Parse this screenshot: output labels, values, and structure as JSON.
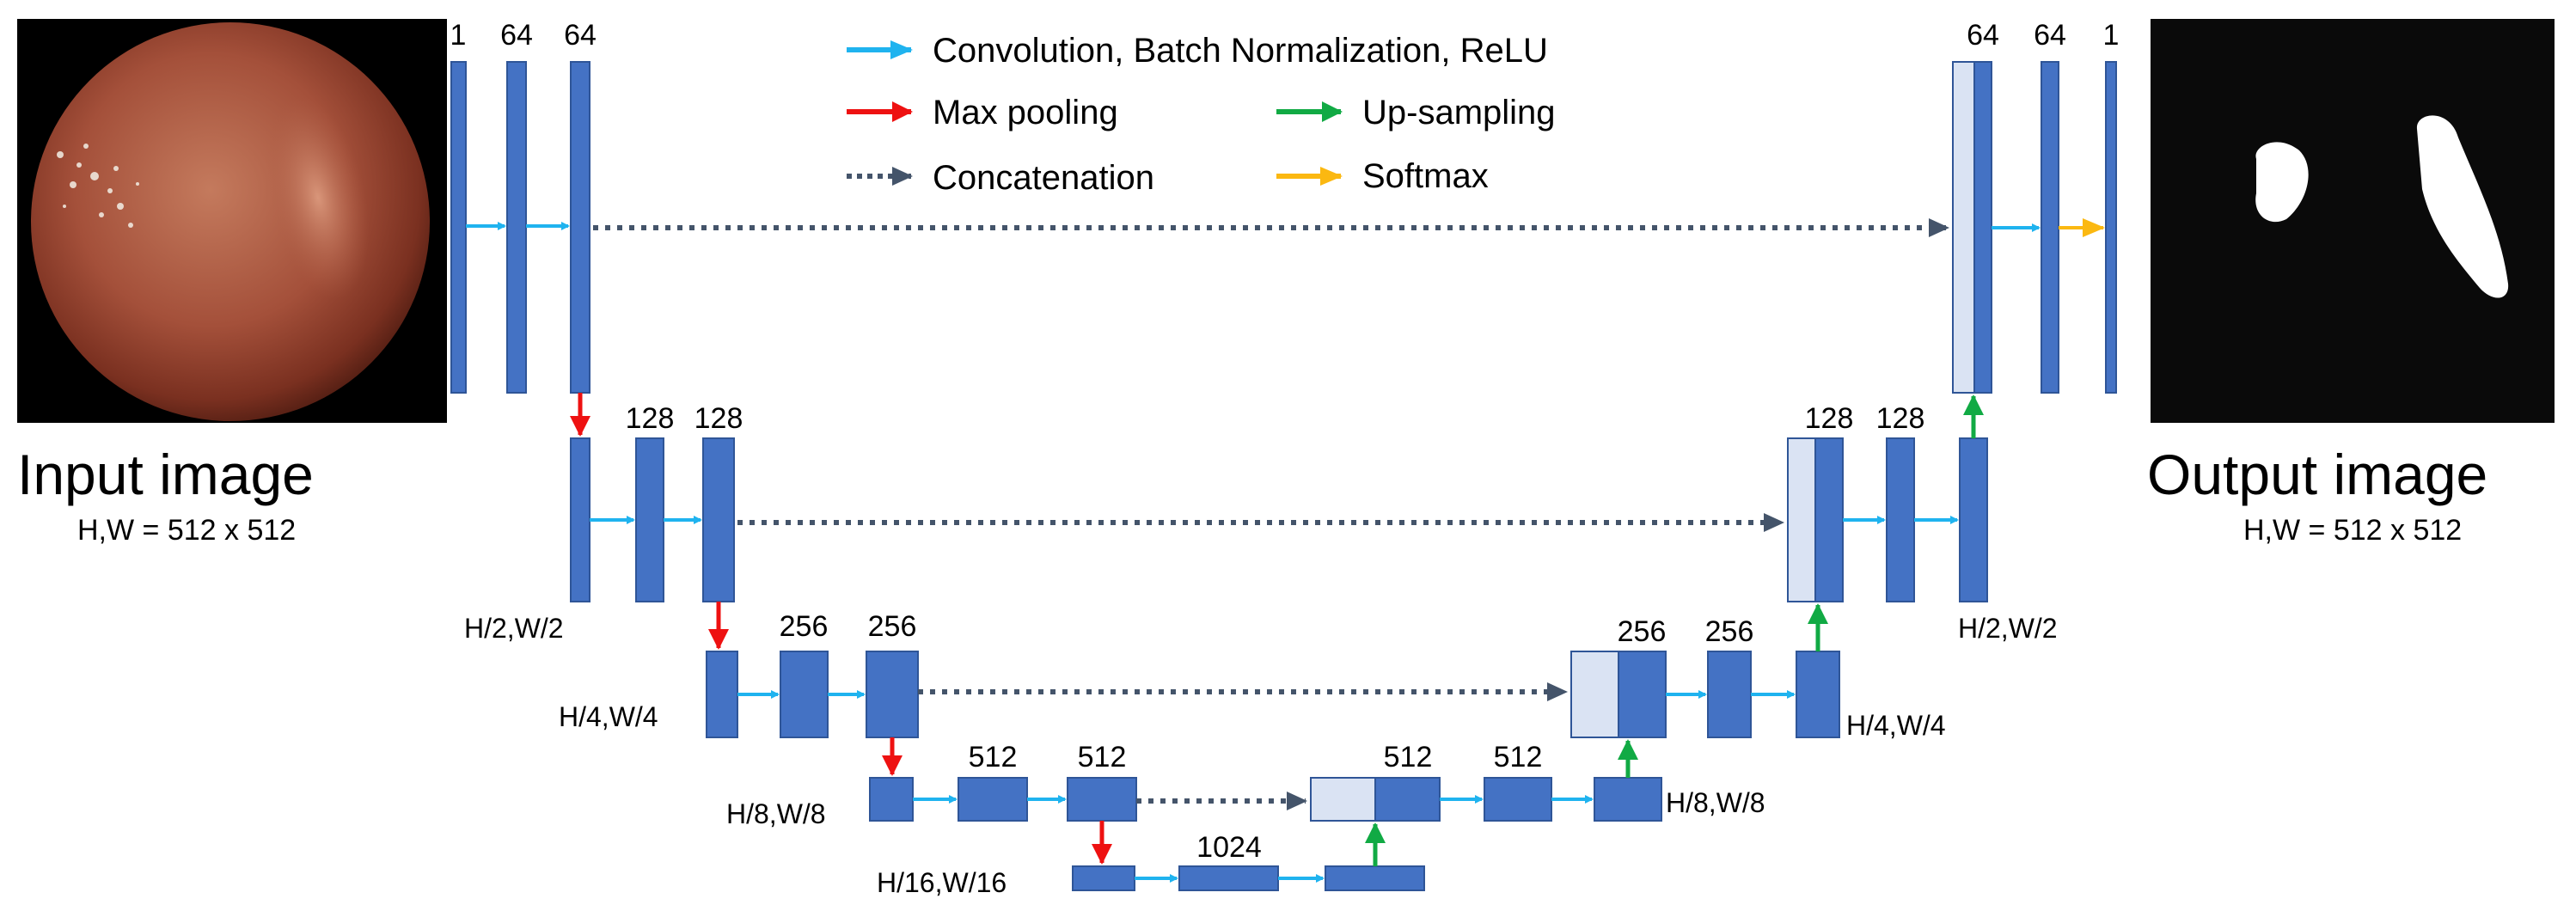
{
  "input": {
    "title": "Input image",
    "size": "H,W  = 512 x 512"
  },
  "output": {
    "title": "Output image",
    "size": "H,W  = 512 x 512"
  },
  "legend": {
    "conv": "Convolution, Batch Normalization, ReLU",
    "maxpool": "Max pooling",
    "concat": "Concatenation",
    "upsample": "Up-sampling",
    "softmax": "Softmax"
  },
  "colors": {
    "block": "#4472c4",
    "block_border": "#2f5597",
    "skip_block": "#dae3f3",
    "conv_arrow": "#1fb3ef",
    "maxpool_arrow": "#ee1111",
    "upsample_arrow": "#11aa44",
    "softmax_arrow": "#fbb811",
    "concat_arrow": "#44546a"
  },
  "channels": {
    "enc1": [
      "1",
      "64",
      "64"
    ],
    "enc2": [
      "128",
      "128"
    ],
    "enc3": [
      "256",
      "256"
    ],
    "enc4": [
      "512",
      "512"
    ],
    "bottleneck": "1024",
    "dec4": [
      "512",
      "512"
    ],
    "dec3": [
      "256",
      "256"
    ],
    "dec2": [
      "128",
      "128"
    ],
    "dec1": [
      "64",
      "64",
      "1"
    ]
  },
  "dims": {
    "enc2": "H/2,W/2",
    "enc3": "H/4,W/4",
    "enc4": "H/8,W/8",
    "bottleneck": "H/16,W/16",
    "dec4": "H/8,W/8",
    "dec3": "H/4,W/4",
    "dec2": "H/2,W/2"
  }
}
